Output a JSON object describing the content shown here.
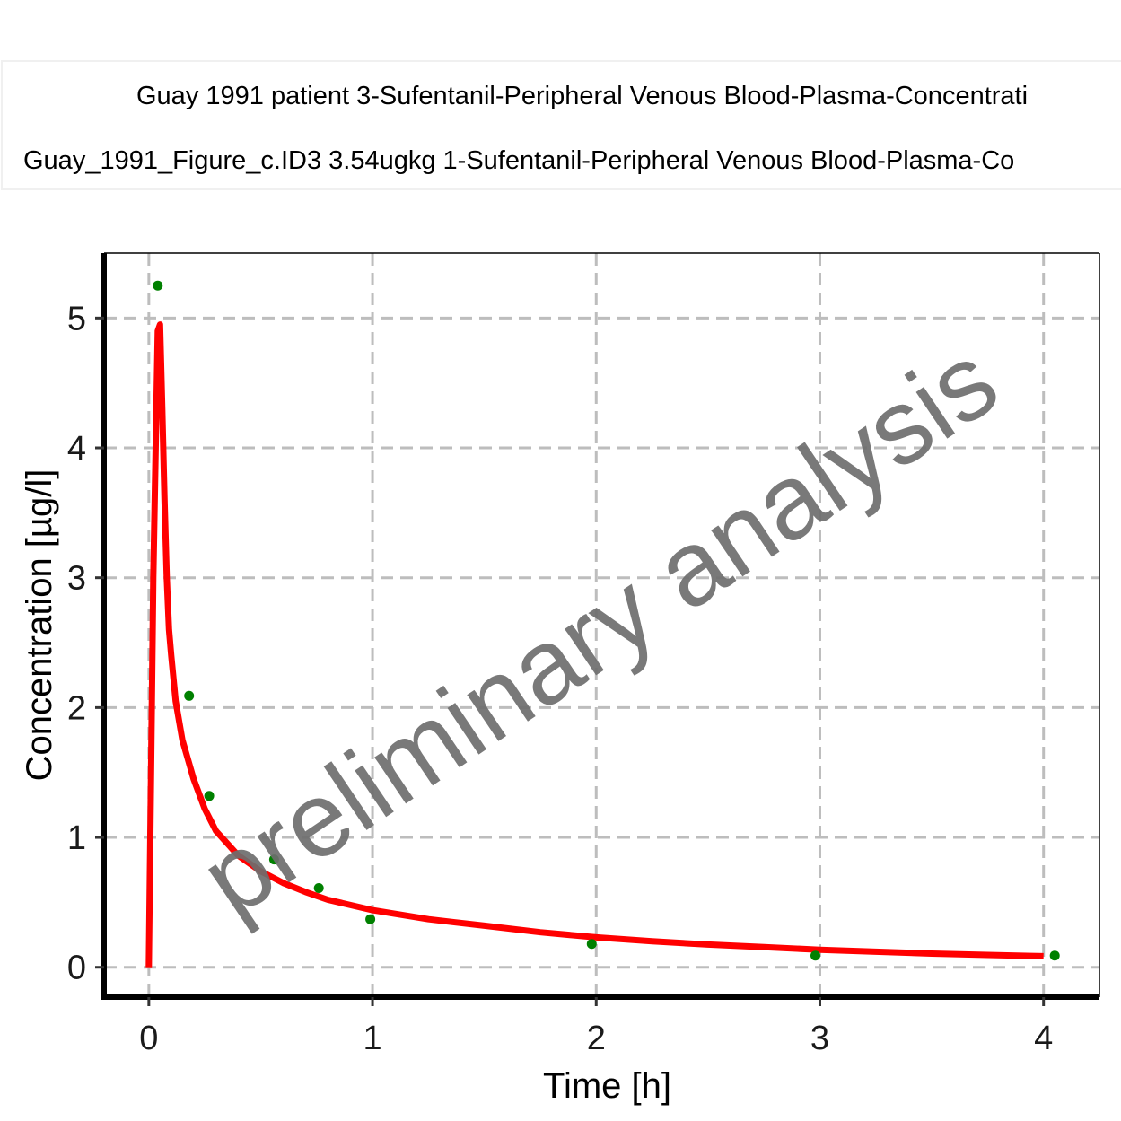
{
  "chart_data": {
    "type": "line",
    "title": "",
    "xlabel": "Time [h]",
    "ylabel": "Concentration [µg/l]",
    "xlim": [
      -0.2,
      4.25
    ],
    "ylim": [
      -0.23,
      5.5
    ],
    "x_ticks": [
      0,
      1,
      2,
      3,
      4
    ],
    "y_ticks": [
      0,
      1,
      2,
      3,
      4,
      5
    ],
    "grid": true,
    "legend_position": "top",
    "watermark": "preliminary analysis",
    "series": [
      {
        "name": "Guay 1991 patient 3-Sufentanil-Peripheral Venous Blood-Plasma-Concentrati",
        "kind": "line",
        "color": "#ff0000",
        "x": [
          0.0,
          0.02,
          0.04,
          0.05,
          0.06,
          0.07,
          0.08,
          0.09,
          0.1,
          0.12,
          0.15,
          0.2,
          0.25,
          0.3,
          0.4,
          0.5,
          0.6,
          0.7,
          0.8,
          1.0,
          1.25,
          1.5,
          1.75,
          2.0,
          2.25,
          2.5,
          2.75,
          3.0,
          3.25,
          3.5,
          3.75,
          4.0
        ],
        "y": [
          0.0,
          3.0,
          4.9,
          4.95,
          4.3,
          3.6,
          3.0,
          2.6,
          2.4,
          2.05,
          1.75,
          1.45,
          1.22,
          1.05,
          0.86,
          0.74,
          0.65,
          0.58,
          0.52,
          0.44,
          0.37,
          0.32,
          0.27,
          0.23,
          0.2,
          0.175,
          0.155,
          0.135,
          0.12,
          0.105,
          0.095,
          0.085
        ]
      },
      {
        "name": "Guay_1991_Figure_c.ID3 3.54ugkg 1-Sufentanil-Peripheral Venous Blood-Plasma-Co",
        "kind": "scatter",
        "color": "#008000",
        "x": [
          0.04,
          0.18,
          0.27,
          0.56,
          0.76,
          0.99,
          1.98,
          2.98,
          4.05
        ],
        "y": [
          5.25,
          2.09,
          1.32,
          0.83,
          0.61,
          0.37,
          0.18,
          0.09,
          0.09
        ]
      }
    ]
  }
}
